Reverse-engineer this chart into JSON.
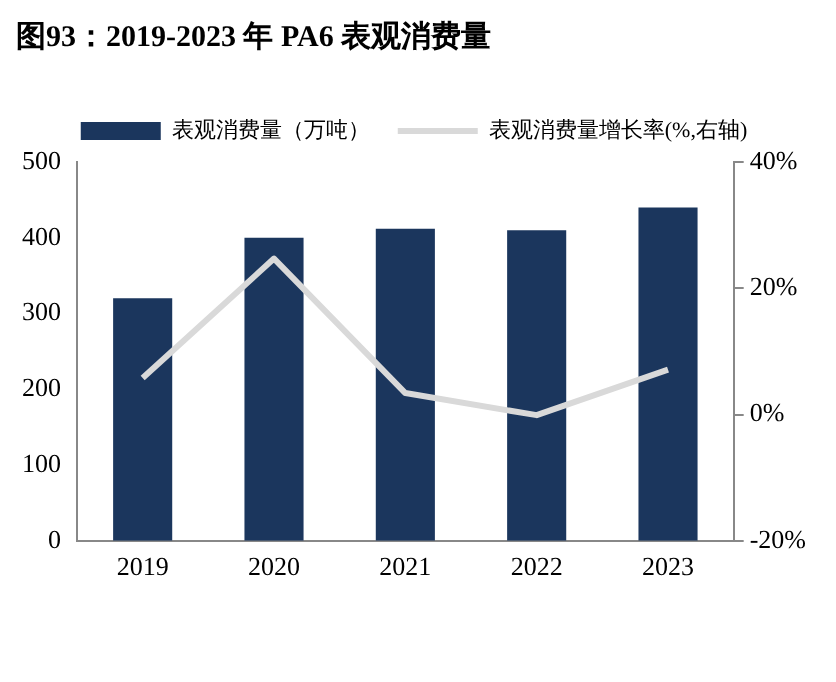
{
  "chart_data": {
    "type": "bar",
    "title": "图93：2019-2023 年 PA6 表观消费量",
    "categories": [
      "2019",
      "2020",
      "2021",
      "2022",
      "2023"
    ],
    "series": [
      {
        "name": "表观消费量（万吨）",
        "color": "#1b365d",
        "values": [
          320,
          400,
          412,
          410,
          440
        ]
      },
      {
        "name": "表观消费量增长率(%,右轴)",
        "type": "line",
        "axis": "y2",
        "color": "#d9d9d9",
        "values": [
          5.8,
          24.7,
          3.4,
          -0.1,
          7.1
        ]
      }
    ],
    "ylim": [
      0,
      500
    ],
    "yticks": [
      0,
      100,
      200,
      300,
      400,
      500
    ],
    "y2lim": [
      -20,
      40
    ],
    "y2ticks": [
      {
        "value": -20,
        "label": "-20%"
      },
      {
        "value": 0,
        "label": "0%"
      },
      {
        "value": 20,
        "label": "20%"
      },
      {
        "value": 40,
        "label": "40%"
      }
    ],
    "grid": false,
    "legend": "top"
  }
}
